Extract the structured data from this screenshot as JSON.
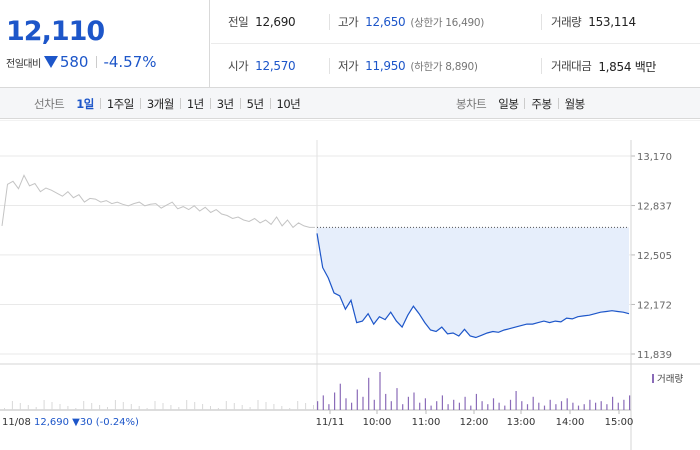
{
  "summary": {
    "price": "12,110",
    "change_label": "전일대비",
    "change_value": "580",
    "change_direction": "down",
    "change_percent": "-4.57%",
    "stats": [
      [
        {
          "label": "전일",
          "value": "12,690",
          "color": "normal",
          "sub": ""
        },
        {
          "label": "고가",
          "value": "12,650",
          "color": "blue",
          "sub": "(상한가 16,490)"
        },
        {
          "label": "거래량",
          "value": "153,114",
          "color": "normal",
          "sub": ""
        }
      ],
      [
        {
          "label": "시가",
          "value": "12,570",
          "color": "blue",
          "sub": ""
        },
        {
          "label": "저가",
          "value": "11,950",
          "color": "blue",
          "sub": "(하한가 8,890)"
        },
        {
          "label": "거래대금",
          "value": "1,854 백만",
          "color": "normal",
          "sub": ""
        }
      ]
    ]
  },
  "line_tabs": {
    "title": "선차트",
    "items": [
      "1일",
      "1주일",
      "3개월",
      "1년",
      "3년",
      "5년",
      "10년"
    ],
    "active": "1일"
  },
  "candle_tabs": {
    "title": "봉차트",
    "items": [
      "일봉",
      "주봉",
      "월봉"
    ]
  },
  "colors": {
    "blue": "#1d56c9",
    "prev_day_line": "#c4c4c4",
    "fill": "#e6eefb",
    "volume_bar": "#8a6bb8"
  },
  "chart_data": {
    "type": "line",
    "y_ticks": [
      "13,170",
      "12,837",
      "12,505",
      "12,172",
      "11,839"
    ],
    "ylim": [
      11839,
      13170
    ],
    "prev_close": 12690,
    "x_ticks": [
      "11/11",
      "10:00",
      "11:00",
      "12:00",
      "13:00",
      "14:00",
      "15:00"
    ],
    "prev_day_label": "11/08",
    "prev_day_info": {
      "price": "12,690",
      "change": "30",
      "percent": "(-0.24%)"
    },
    "volume_legend": "거래량",
    "series": [
      {
        "values": [
          12700,
          12980,
          13000,
          12950,
          13040,
          12970,
          12985,
          12930,
          12955,
          12940,
          12920,
          12900,
          12930,
          12890,
          12910,
          12860,
          12885,
          12880,
          12860,
          12870,
          12850,
          12860,
          12845,
          12835,
          12850,
          12860,
          12835,
          12845,
          12850,
          12820,
          12840,
          12860,
          12815,
          12830,
          12810,
          12835,
          12800,
          12825,
          12790,
          12810,
          12780,
          12770,
          12750,
          12760,
          12740,
          12730,
          12750,
          12720,
          12740,
          12710,
          12760,
          12700,
          12740,
          12690,
          12720,
          12700,
          12690,
          12690
        ]
      },
      {
        "values": [
          12650,
          12420,
          12350,
          12250,
          12230,
          12140,
          12200,
          12050,
          12060,
          12110,
          12040,
          12090,
          12070,
          12120,
          12060,
          12020,
          12100,
          12160,
          12110,
          12050,
          12000,
          11990,
          12020,
          11975,
          11980,
          11960,
          12005,
          11960,
          11950,
          11965,
          11980,
          11990,
          11985,
          12000,
          12010,
          12020,
          12030,
          12040,
          12040,
          12050,
          12060,
          12050,
          12060,
          12055,
          12080,
          12075,
          12090,
          12095,
          12100,
          12110,
          12120,
          12125,
          12130,
          12125,
          12120,
          12110
        ]
      }
    ],
    "volume": [
      6,
      10,
      4,
      12,
      18,
      8,
      5,
      14,
      9,
      22,
      7,
      26,
      11,
      6,
      15,
      4,
      9,
      12,
      5,
      8,
      3,
      6,
      10,
      4,
      7,
      5,
      9,
      3,
      11,
      6,
      4,
      8,
      5,
      3,
      7,
      13,
      6,
      4,
      9,
      5,
      3,
      7,
      4,
      6,
      8,
      5,
      3,
      4,
      7,
      5,
      6,
      4,
      9,
      5,
      7,
      10
    ]
  }
}
